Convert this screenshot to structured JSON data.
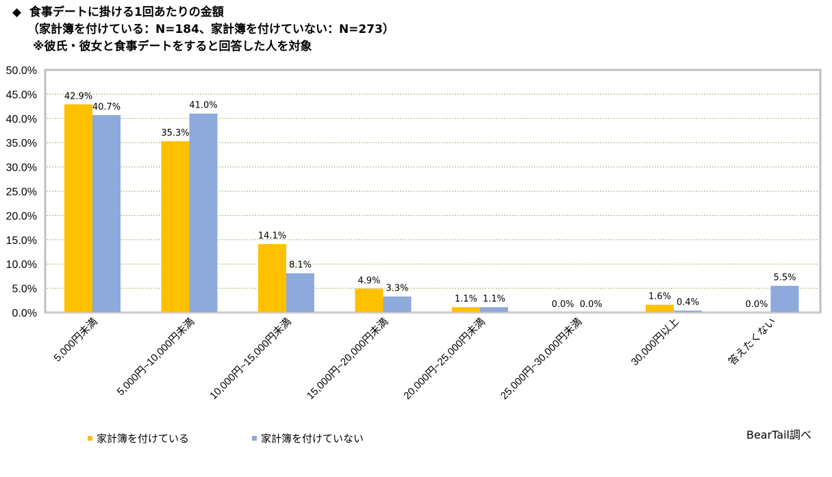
{
  "header": {
    "bullet": "◆",
    "title": "食事デートに掛ける1回あたりの金額",
    "subtitle": "（家計簿を付けている：N=184、家計簿を付けていない：N=273）",
    "note": "※彼氏・彼女と食事デートをすると回答した人を対象"
  },
  "chart_data": {
    "type": "bar",
    "title": "食事デートに掛ける1回あたりの金額",
    "categories": [
      "5,000円未満",
      "5,000円~10,000円未満",
      "10,000円~15,000円未満",
      "15,000円~20,000円未満",
      "20,000円~25,000円未満",
      "25,000円~30,000円未満",
      "30,000円以上",
      "答えたくない"
    ],
    "series": [
      {
        "name": "家計簿を付けている",
        "color": "#FFC000",
        "values": [
          42.9,
          35.3,
          14.1,
          4.9,
          1.1,
          0.0,
          1.6,
          0.0
        ],
        "labels": [
          "42.9%",
          "35.3%",
          "14.1%",
          "4.9%",
          "1.1%",
          "0.0%",
          "1.6%",
          "0.0%"
        ]
      },
      {
        "name": "家計簿を付けていない",
        "color": "#8EA9DB",
        "values": [
          40.7,
          41.0,
          8.1,
          3.3,
          1.1,
          0.0,
          0.4,
          5.5
        ],
        "labels": [
          "40.7%",
          "41.0%",
          "8.1%",
          "3.3%",
          "1.1%",
          "0.0%",
          "0.4%",
          "5.5%"
        ]
      }
    ],
    "ylim": [
      0,
      50
    ],
    "yticks": [
      "0.0%",
      "5.0%",
      "10.0%",
      "15.0%",
      "20.0%",
      "25.0%",
      "30.0%",
      "35.0%",
      "40.0%",
      "45.0%",
      "50.0%"
    ],
    "grid": true,
    "grid_color": "#9BBB59",
    "frame_color": "#BFBFBF",
    "legend_position": "bottom-left"
  },
  "credit": "BearTail調べ"
}
